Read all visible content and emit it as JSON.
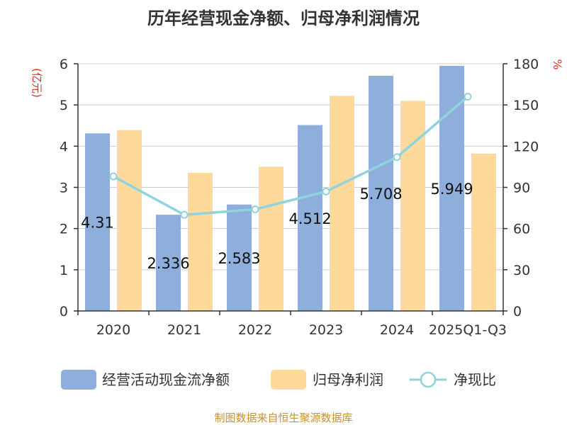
{
  "title": "历年经营现金净额、归母净利润情况",
  "left_unit": "(亿元)",
  "right_unit": "%",
  "source": "制图数据来自恒生聚源数据库",
  "colors": {
    "cashflow": "#8eafdb",
    "profit": "#fdd99b",
    "ratio": "#8fd3dc",
    "unit_text": "#e0301e",
    "source_text": "#c8912a"
  },
  "chart_data": {
    "type": "bar",
    "categories": [
      "2020",
      "2021",
      "2022",
      "2023",
      "2024",
      "2025Q1-Q3"
    ],
    "series": [
      {
        "name": "经营活动现金流净额",
        "type": "bar",
        "axis": "left",
        "values": [
          4.31,
          2.336,
          2.583,
          4.512,
          5.708,
          5.949
        ],
        "labels": [
          "4.31",
          "2.336",
          "2.583",
          "4.512",
          "5.708",
          "5.949"
        ]
      },
      {
        "name": "归母净利润",
        "type": "bar",
        "axis": "left",
        "values": [
          4.39,
          3.35,
          3.5,
          5.22,
          5.1,
          3.82
        ]
      },
      {
        "name": "净现比",
        "type": "line",
        "axis": "right",
        "values": [
          98,
          70,
          74,
          87,
          112,
          156
        ]
      }
    ],
    "y_left": {
      "min": 0,
      "max": 6,
      "ticks": [
        0,
        1,
        2,
        3,
        4,
        5,
        6
      ]
    },
    "y_right": {
      "min": 0,
      "max": 180,
      "ticks": [
        0,
        30,
        60,
        90,
        120,
        150,
        180
      ]
    },
    "grid": true,
    "legend_position": "bottom"
  }
}
